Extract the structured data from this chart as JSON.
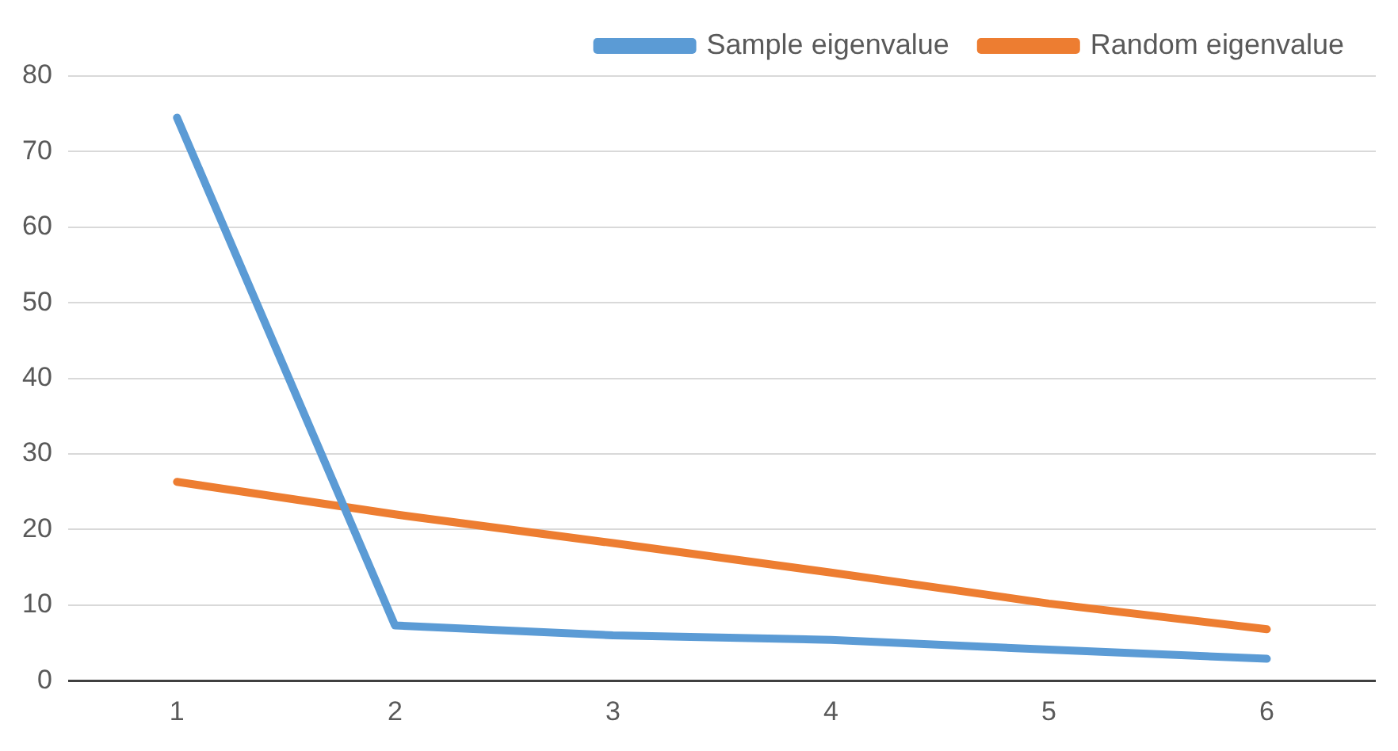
{
  "chart_data": {
    "type": "line",
    "categories": [
      "1",
      "2",
      "3",
      "4",
      "5",
      "6"
    ],
    "series": [
      {
        "name": "Sample eigenvalue",
        "color": "#5b9bd5",
        "values": [
          74.5,
          7.3,
          6.0,
          5.4,
          4.1,
          2.9
        ]
      },
      {
        "name": "Random eigenvalue",
        "color": "#ed7d31",
        "values": [
          26.3,
          22.0,
          18.2,
          14.3,
          10.2,
          6.8
        ]
      }
    ],
    "ylim": [
      0,
      80
    ],
    "yticks": [
      0,
      10,
      20,
      30,
      40,
      50,
      60,
      70,
      80
    ],
    "grid": "y",
    "legend": "top right",
    "marker": "none",
    "line_style": "solid"
  }
}
